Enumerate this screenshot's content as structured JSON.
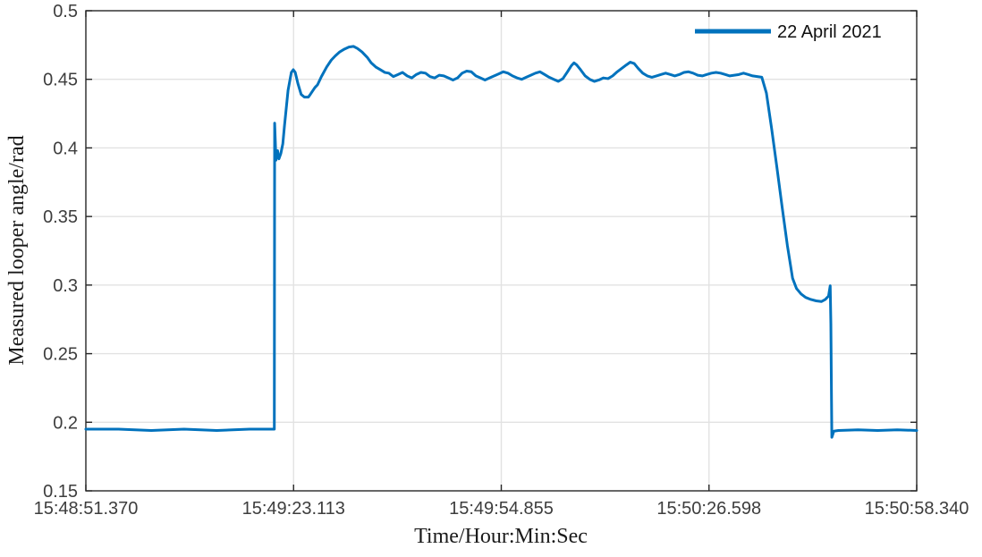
{
  "figure": {
    "background_color": "#ffffff",
    "axis_color": "#262626",
    "grid_color": "#e2e2e2",
    "tick_label_color": "#3d3d3d",
    "label_color": "#1a1a1a"
  },
  "chart_data": {
    "type": "line",
    "title": "",
    "xlabel": "Time/Hour:Min:Sec",
    "ylabel": "Measured looper angle/rad",
    "grid": true,
    "x_tick_labels": [
      "15:48:51.370",
      "15:49:23.113",
      "15:49:54.855",
      "15:50:26.598",
      "15:50:58.340"
    ],
    "x_tick_seconds": [
      0,
      31.7425,
      63.485,
      95.2275,
      126.97
    ],
    "xlim_seconds": [
      0,
      126.97
    ],
    "y_ticks": [
      0.15,
      0.2,
      0.25,
      0.3,
      0.35,
      0.4,
      0.45,
      0.5
    ],
    "y_tick_labels": [
      "0.15",
      "0.2",
      "0.25",
      "0.3",
      "0.35",
      "0.4",
      "0.45",
      "0.5"
    ],
    "ylim": [
      0.15,
      0.5
    ],
    "legend": {
      "position": "top-right",
      "entries": [
        {
          "label": "22 April 2021",
          "color": "#0072BD"
        }
      ]
    },
    "series": [
      {
        "name": "22 April 2021",
        "color": "#0072BD",
        "line_width": 3,
        "points": [
          [
            0,
            0.195
          ],
          [
            5,
            0.195
          ],
          [
            10,
            0.194
          ],
          [
            15,
            0.195
          ],
          [
            20,
            0.194
          ],
          [
            25,
            0.195
          ],
          [
            28.8,
            0.195
          ],
          [
            28.85,
            0.418
          ],
          [
            28.95,
            0.405
          ],
          [
            29.05,
            0.391
          ],
          [
            29.3,
            0.398
          ],
          [
            29.5,
            0.392
          ],
          [
            29.8,
            0.396
          ],
          [
            30.1,
            0.403
          ],
          [
            30.35,
            0.416
          ],
          [
            30.9,
            0.442
          ],
          [
            31.4,
            0.455
          ],
          [
            31.7,
            0.457
          ],
          [
            32.0,
            0.455
          ],
          [
            32.4,
            0.447
          ],
          [
            32.9,
            0.439
          ],
          [
            33.4,
            0.437
          ],
          [
            34.0,
            0.437
          ],
          [
            34.3,
            0.439
          ],
          [
            35.0,
            0.444
          ],
          [
            35.4,
            0.446
          ],
          [
            36.0,
            0.452
          ],
          [
            36.8,
            0.459
          ],
          [
            37.5,
            0.464
          ],
          [
            38.1,
            0.467
          ],
          [
            38.8,
            0.47
          ],
          [
            39.5,
            0.472
          ],
          [
            40.2,
            0.4735
          ],
          [
            40.9,
            0.474
          ],
          [
            41.5,
            0.4725
          ],
          [
            42.2,
            0.47
          ],
          [
            43.0,
            0.466
          ],
          [
            43.6,
            0.462
          ],
          [
            44.3,
            0.459
          ],
          [
            45.0,
            0.457
          ],
          [
            45.7,
            0.455
          ],
          [
            46.3,
            0.4545
          ],
          [
            47.0,
            0.452
          ],
          [
            47.7,
            0.4535
          ],
          [
            48.4,
            0.455
          ],
          [
            49.1,
            0.4525
          ],
          [
            49.8,
            0.451
          ],
          [
            50.5,
            0.4535
          ],
          [
            51.2,
            0.455
          ],
          [
            51.9,
            0.4545
          ],
          [
            52.6,
            0.452
          ],
          [
            53.3,
            0.451
          ],
          [
            54.0,
            0.453
          ],
          [
            54.7,
            0.4525
          ],
          [
            55.4,
            0.451
          ],
          [
            56.1,
            0.4495
          ],
          [
            56.8,
            0.451
          ],
          [
            57.5,
            0.4545
          ],
          [
            58.2,
            0.456
          ],
          [
            58.9,
            0.4555
          ],
          [
            59.6,
            0.4525
          ],
          [
            60.3,
            0.451
          ],
          [
            61.0,
            0.4495
          ],
          [
            61.7,
            0.451
          ],
          [
            62.4,
            0.4525
          ],
          [
            63.1,
            0.454
          ],
          [
            63.8,
            0.4555
          ],
          [
            64.5,
            0.4545
          ],
          [
            65.2,
            0.4525
          ],
          [
            65.9,
            0.451
          ],
          [
            66.6,
            0.45
          ],
          [
            67.3,
            0.4515
          ],
          [
            68.0,
            0.453
          ],
          [
            68.7,
            0.4545
          ],
          [
            69.4,
            0.4555
          ],
          [
            70.1,
            0.4535
          ],
          [
            70.8,
            0.4515
          ],
          [
            71.5,
            0.45
          ],
          [
            72.2,
            0.4485
          ],
          [
            72.9,
            0.4505
          ],
          [
            73.6,
            0.4555
          ],
          [
            74.2,
            0.46
          ],
          [
            74.6,
            0.462
          ],
          [
            75.0,
            0.4605
          ],
          [
            75.6,
            0.457
          ],
          [
            76.3,
            0.4525
          ],
          [
            77.0,
            0.45
          ],
          [
            77.7,
            0.4485
          ],
          [
            78.4,
            0.4495
          ],
          [
            79.1,
            0.451
          ],
          [
            79.8,
            0.4505
          ],
          [
            80.5,
            0.4525
          ],
          [
            81.2,
            0.4555
          ],
          [
            81.9,
            0.458
          ],
          [
            82.6,
            0.4605
          ],
          [
            83.2,
            0.4625
          ],
          [
            83.8,
            0.4615
          ],
          [
            84.4,
            0.458
          ],
          [
            85.1,
            0.4545
          ],
          [
            85.8,
            0.4525
          ],
          [
            86.5,
            0.4515
          ],
          [
            87.2,
            0.4525
          ],
          [
            87.9,
            0.4535
          ],
          [
            88.6,
            0.4545
          ],
          [
            89.3,
            0.4535
          ],
          [
            90.0,
            0.4525
          ],
          [
            90.7,
            0.4535
          ],
          [
            91.4,
            0.455
          ],
          [
            92.1,
            0.4555
          ],
          [
            92.8,
            0.4545
          ],
          [
            93.5,
            0.453
          ],
          [
            94.2,
            0.4525
          ],
          [
            94.9,
            0.4535
          ],
          [
            95.6,
            0.4545
          ],
          [
            96.3,
            0.455
          ],
          [
            97.0,
            0.4545
          ],
          [
            97.7,
            0.4535
          ],
          [
            98.4,
            0.4525
          ],
          [
            99.1,
            0.453
          ],
          [
            99.8,
            0.4535
          ],
          [
            100.5,
            0.4545
          ],
          [
            101.2,
            0.4535
          ],
          [
            101.9,
            0.4525
          ],
          [
            102.6,
            0.452
          ],
          [
            103.3,
            0.4515
          ],
          [
            104.0,
            0.44
          ],
          [
            104.8,
            0.414
          ],
          [
            105.6,
            0.386
          ],
          [
            106.4,
            0.357
          ],
          [
            107.2,
            0.329
          ],
          [
            108.0,
            0.305
          ],
          [
            108.6,
            0.2975
          ],
          [
            109.3,
            0.2935
          ],
          [
            110.0,
            0.291
          ],
          [
            110.8,
            0.2895
          ],
          [
            111.6,
            0.2885
          ],
          [
            112.4,
            0.288
          ],
          [
            113.0,
            0.2895
          ],
          [
            113.5,
            0.292
          ],
          [
            113.75,
            0.2995
          ],
          [
            113.85,
            0.272
          ],
          [
            113.95,
            0.215
          ],
          [
            114.0,
            0.189
          ],
          [
            114.3,
            0.1935
          ],
          [
            115.0,
            0.194
          ],
          [
            118,
            0.1945
          ],
          [
            121,
            0.194
          ],
          [
            124,
            0.1945
          ],
          [
            126.97,
            0.194
          ]
        ]
      }
    ]
  }
}
